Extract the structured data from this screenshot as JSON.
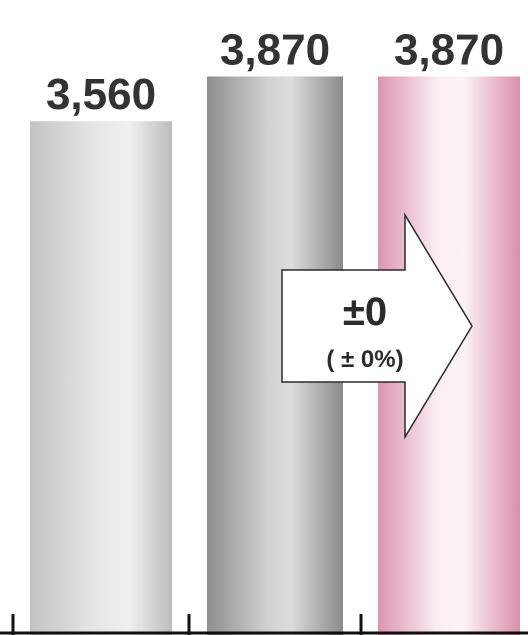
{
  "chart_data": {
    "type": "bar",
    "categories": [
      "",
      "",
      ""
    ],
    "values": [
      3560,
      3870,
      3870
    ],
    "value_labels": [
      "3,560",
      "3,870",
      "3,870"
    ],
    "ylim": [
      0,
      4400
    ],
    "grid": false,
    "legend": "none",
    "colors": [
      "#c8c8c8",
      "#9a9a9a",
      "#e3a3bb"
    ],
    "annotation": {
      "main": "±0",
      "sub": "( ± 0%)"
    }
  }
}
